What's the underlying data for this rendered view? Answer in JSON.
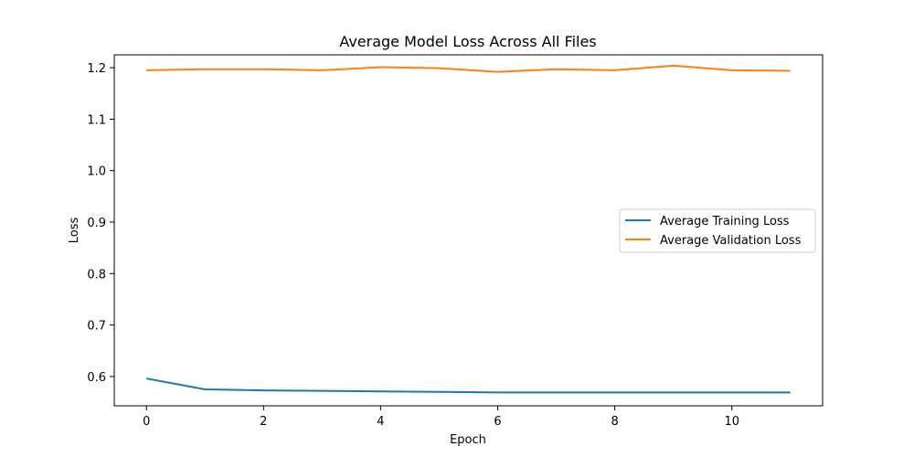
{
  "chart_data": {
    "type": "line",
    "title": "Average Model Loss Across All Files",
    "xlabel": "Epoch",
    "ylabel": "Loss",
    "xlim": [
      -0.55,
      11.55
    ],
    "ylim": [
      0.543,
      1.225
    ],
    "xticks": [
      0,
      2,
      4,
      6,
      8,
      10
    ],
    "yticks": [
      0.6,
      0.7,
      0.8,
      0.9,
      1.0,
      1.1,
      1.2
    ],
    "x": [
      0,
      1,
      2,
      3,
      4,
      5,
      6,
      7,
      8,
      9,
      10,
      11
    ],
    "series": [
      {
        "name": "Average Training Loss",
        "color": "#1f77b4",
        "values": [
          0.596,
          0.575,
          0.573,
          0.572,
          0.571,
          0.57,
          0.569,
          0.569,
          0.569,
          0.569,
          0.569,
          0.569
        ]
      },
      {
        "name": "Average Validation Loss",
        "color": "#ff7f0e",
        "values": [
          1.195,
          1.197,
          1.197,
          1.195,
          1.201,
          1.199,
          1.192,
          1.197,
          1.195,
          1.204,
          1.195,
          1.194
        ]
      }
    ],
    "grid": false,
    "legend_position": "center-right"
  }
}
